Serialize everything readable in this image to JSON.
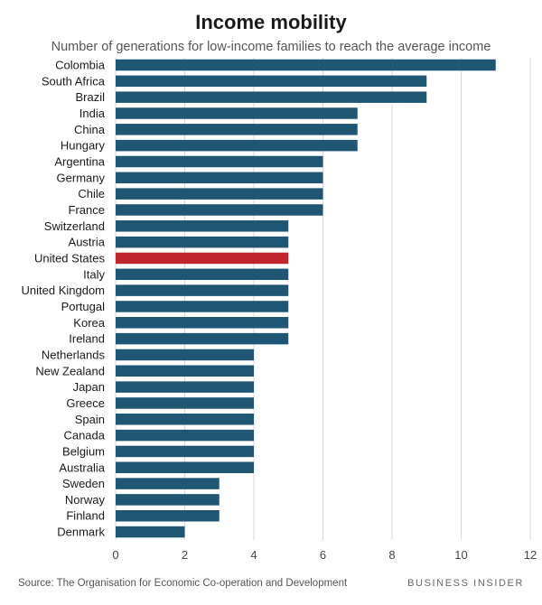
{
  "chart_data": {
    "type": "bar",
    "orientation": "horizontal",
    "title": "Income mobility",
    "subtitle": "Number of generations for low-income families to reach the average income",
    "categories": [
      "Colombia",
      "South Africa",
      "Brazil",
      "India",
      "China",
      "Hungary",
      "Argentina",
      "Germany",
      "Chile",
      "France",
      "Switzerland",
      "Austria",
      "United States",
      "Italy",
      "United Kingdom",
      "Portugal",
      "Korea",
      "Ireland",
      "Netherlands",
      "New Zealand",
      "Japan",
      "Greece",
      "Spain",
      "Canada",
      "Belgium",
      "Australia",
      "Sweden",
      "Norway",
      "Finland",
      "Denmark"
    ],
    "values": [
      11,
      9,
      9,
      7,
      7,
      7,
      6,
      6,
      6,
      6,
      5,
      5,
      5,
      5,
      5,
      5,
      5,
      5,
      4,
      4,
      4,
      4,
      4,
      4,
      4,
      4,
      3,
      3,
      3,
      2
    ],
    "highlight": "United States",
    "xlim": [
      0,
      12
    ],
    "xticks": [
      0,
      2,
      4,
      6,
      8,
      10,
      12
    ],
    "grid": true,
    "colors": {
      "bar": "#1f5673",
      "highlight": "#c0272d",
      "grid": "#d9d9d9"
    }
  },
  "footer": {
    "source": "Source: The Organisation for Economic Co-operation and Development",
    "brand": "BUSINESS INSIDER"
  }
}
